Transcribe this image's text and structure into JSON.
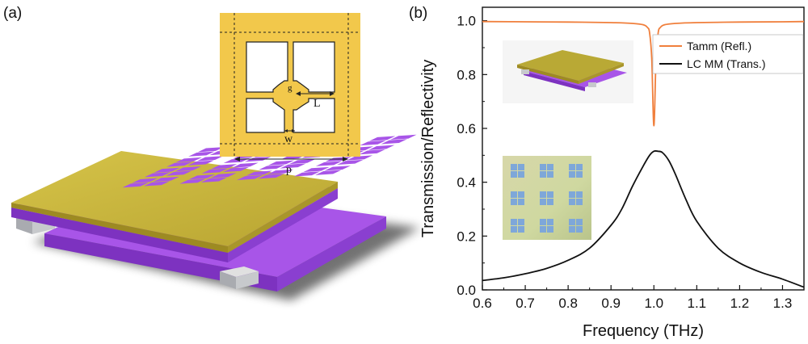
{
  "panels": {
    "a_label": "(a)",
    "b_label": "(b)"
  },
  "unit_cell": {
    "labels": {
      "p": "p",
      "L": "L",
      "w": "w",
      "g": "g"
    },
    "colors": {
      "metal": "#f2c84b",
      "outline": "#222222"
    }
  },
  "device_colors": {
    "gold_top": "#c9b53a",
    "gold_front": "#b89f2c",
    "purple": "#a855e8",
    "purple_dark": "#7d32c0",
    "spacer": "#c7c9cc"
  },
  "chart_data": {
    "type": "line",
    "xlabel": "Frequency (THz)",
    "ylabel": "Transmission/Reflectivity",
    "xlim": [
      0.6,
      1.35
    ],
    "ylim": [
      0.0,
      1.05
    ],
    "xticks": [
      "0.6",
      "0.7",
      "0.8",
      "0.9",
      "1.0",
      "1.1",
      "1.2",
      "1.3"
    ],
    "yticks": [
      "0.0",
      "0.2",
      "0.4",
      "0.6",
      "0.8",
      "1.0"
    ],
    "legend_position": "top-right",
    "series": [
      {
        "name": "Tamm (Refl.)",
        "color": "#f07f3c",
        "x": [
          0.6,
          0.7,
          0.8,
          0.9,
          0.95,
          0.975,
          0.985,
          0.99,
          0.995,
          1.0,
          1.005,
          1.01,
          1.015,
          1.025,
          1.05,
          1.1,
          1.2,
          1.3,
          1.35
        ],
        "y": [
          0.997,
          0.996,
          0.995,
          0.993,
          0.99,
          0.985,
          0.975,
          0.955,
          0.86,
          0.61,
          0.86,
          0.955,
          0.975,
          0.985,
          0.99,
          0.993,
          0.995,
          0.996,
          0.997
        ]
      },
      {
        "name": "LC MM (Trans.)",
        "color": "#111111",
        "x": [
          0.6,
          0.65,
          0.7,
          0.75,
          0.8,
          0.85,
          0.9,
          0.925,
          0.95,
          0.975,
          0.99,
          1.0,
          1.01,
          1.02,
          1.035,
          1.05,
          1.075,
          1.1,
          1.15,
          1.2,
          1.25,
          1.3,
          1.35
        ],
        "y": [
          0.035,
          0.045,
          0.06,
          0.08,
          0.11,
          0.155,
          0.24,
          0.3,
          0.385,
          0.46,
          0.5,
          0.515,
          0.515,
          0.51,
          0.48,
          0.43,
          0.335,
          0.255,
          0.155,
          0.1,
          0.065,
          0.04,
          0.01
        ]
      }
    ]
  }
}
